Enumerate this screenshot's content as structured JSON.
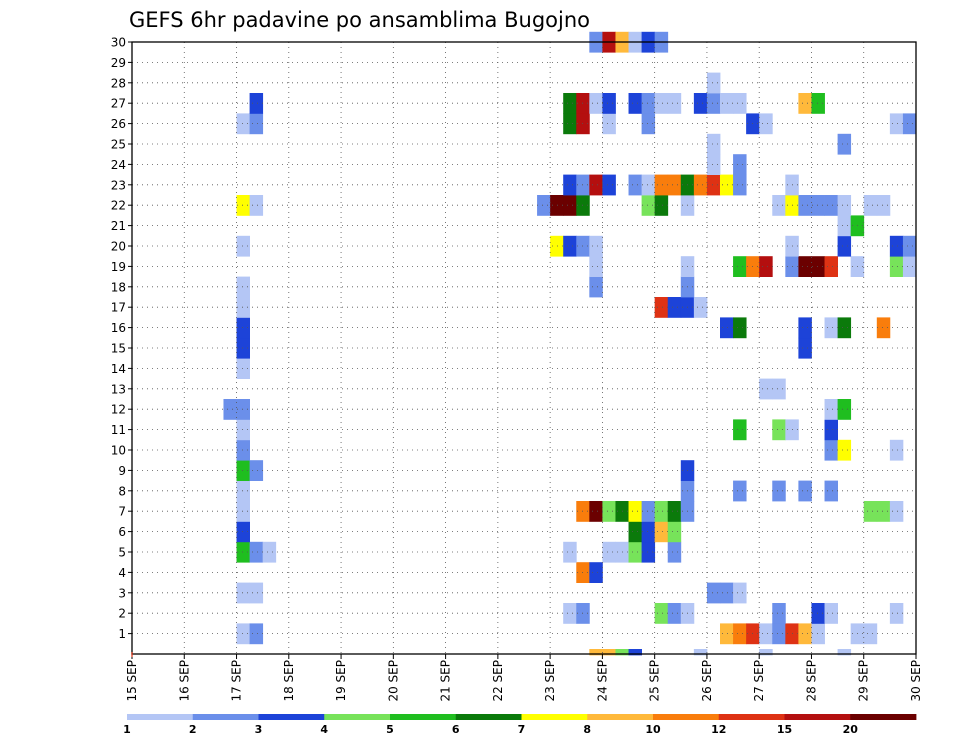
{
  "chart_data": {
    "type": "heatmap",
    "title": "GEFS 6hr padavine po ansamblima Bugojno",
    "xlabel": "",
    "ylabel": "",
    "x_tick_labels": [
      "15 SEP",
      "16 SEP",
      "17 SEP",
      "18 SEP",
      "19 SEP",
      "20 SEP",
      "21 SEP",
      "22 SEP",
      "23 SEP",
      "24 SEP",
      "25 SEP",
      "26 SEP",
      "27 SEP",
      "28 SEP",
      "29 SEP",
      "30 SEP"
    ],
    "x_range_days": [
      0,
      15
    ],
    "y_tick_labels": [
      "1",
      "2",
      "3",
      "4",
      "5",
      "6",
      "7",
      "8",
      "9",
      "10",
      "11",
      "12",
      "13",
      "14",
      "15",
      "16",
      "17",
      "18",
      "19",
      "20",
      "21",
      "22",
      "23",
      "24",
      "25",
      "26",
      "27",
      "28",
      "29",
      "30"
    ],
    "y_range": [
      0,
      30
    ],
    "grid": true,
    "legend_position": "bottom",
    "legend": {
      "colors": [
        "#b4c6f5",
        "#6b8fea",
        "#1d43d8",
        "#77e35a",
        "#1fbe1f",
        "#0b7a0b",
        "#ffff00",
        "#ffb93b",
        "#f97d0c",
        "#de3214",
        "#b40f0f",
        "#6b0000"
      ],
      "boundary_labels": [
        "1",
        "2",
        "3",
        "4",
        "5",
        "6",
        "7",
        "8",
        "10",
        "12",
        "15",
        "20"
      ]
    },
    "cells": [
      {
        "m": 1,
        "t": 8,
        "c": 1
      },
      {
        "m": 1,
        "t": 9,
        "c": 2
      },
      {
        "m": 1,
        "t": 45,
        "c": 8
      },
      {
        "m": 1,
        "t": 46,
        "c": 9
      },
      {
        "m": 1,
        "t": 47,
        "c": 10
      },
      {
        "m": 1,
        "t": 48,
        "c": 1
      },
      {
        "m": 1,
        "t": 49,
        "c": 2
      },
      {
        "m": 1,
        "t": 50,
        "c": 10
      },
      {
        "m": 1,
        "t": 51,
        "c": 8
      },
      {
        "m": 1,
        "t": 52,
        "c": 1
      },
      {
        "m": 1,
        "t": 55,
        "c": 1
      },
      {
        "m": 1,
        "t": 56,
        "c": 1
      },
      {
        "m": 2,
        "t": 33,
        "c": 1
      },
      {
        "m": 2,
        "t": 34,
        "c": 2
      },
      {
        "m": 2,
        "t": 40,
        "c": 4
      },
      {
        "m": 2,
        "t": 41,
        "c": 2
      },
      {
        "m": 2,
        "t": 42,
        "c": 1
      },
      {
        "m": 2,
        "t": 49,
        "c": 2
      },
      {
        "m": 2,
        "t": 52,
        "c": 3
      },
      {
        "m": 2,
        "t": 53,
        "c": 1
      },
      {
        "m": 2,
        "t": 58,
        "c": 1
      },
      {
        "m": 3,
        "t": 8,
        "c": 1
      },
      {
        "m": 3,
        "t": 9,
        "c": 1
      },
      {
        "m": 3,
        "t": 44,
        "c": 2
      },
      {
        "m": 3,
        "t": 45,
        "c": 2
      },
      {
        "m": 3,
        "t": 46,
        "c": 1
      },
      {
        "m": 4,
        "t": 34,
        "c": 9
      },
      {
        "m": 4,
        "t": 35,
        "c": 3
      },
      {
        "m": 5,
        "t": 8,
        "c": 5
      },
      {
        "m": 5,
        "t": 9,
        "c": 2
      },
      {
        "m": 5,
        "t": 10,
        "c": 1
      },
      {
        "m": 5,
        "t": 33,
        "c": 1
      },
      {
        "m": 5,
        "t": 36,
        "c": 1
      },
      {
        "m": 5,
        "t": 37,
        "c": 1
      },
      {
        "m": 5,
        "t": 38,
        "c": 4
      },
      {
        "m": 5,
        "t": 39,
        "c": 3
      },
      {
        "m": 5,
        "t": 41,
        "c": 2
      },
      {
        "m": 6,
        "t": 8,
        "c": 3
      },
      {
        "m": 6,
        "t": 38,
        "c": 6
      },
      {
        "m": 6,
        "t": 39,
        "c": 3
      },
      {
        "m": 6,
        "t": 40,
        "c": 8
      },
      {
        "m": 6,
        "t": 41,
        "c": 4
      },
      {
        "m": 7,
        "t": 8,
        "c": 1
      },
      {
        "m": 7,
        "t": 34,
        "c": 9
      },
      {
        "m": 7,
        "t": 35,
        "c": 12
      },
      {
        "m": 7,
        "t": 36,
        "c": 4
      },
      {
        "m": 7,
        "t": 37,
        "c": 6
      },
      {
        "m": 7,
        "t": 38,
        "c": 7
      },
      {
        "m": 7,
        "t": 39,
        "c": 2
      },
      {
        "m": 7,
        "t": 40,
        "c": 4
      },
      {
        "m": 7,
        "t": 41,
        "c": 6
      },
      {
        "m": 7,
        "t": 42,
        "c": 2
      },
      {
        "m": 7,
        "t": 56,
        "c": 4
      },
      {
        "m": 7,
        "t": 57,
        "c": 4
      },
      {
        "m": 7,
        "t": 58,
        "c": 1
      },
      {
        "m": 8,
        "t": 8,
        "c": 1
      },
      {
        "m": 8,
        "t": 42,
        "c": 2
      },
      {
        "m": 8,
        "t": 46,
        "c": 2
      },
      {
        "m": 8,
        "t": 49,
        "c": 2
      },
      {
        "m": 8,
        "t": 51,
        "c": 2
      },
      {
        "m": 8,
        "t": 53,
        "c": 2
      },
      {
        "m": 9,
        "t": 8,
        "c": 5
      },
      {
        "m": 9,
        "t": 9,
        "c": 2
      },
      {
        "m": 9,
        "t": 42,
        "c": 3
      },
      {
        "m": 10,
        "t": 8,
        "c": 2
      },
      {
        "m": 10,
        "t": 53,
        "c": 2
      },
      {
        "m": 10,
        "t": 54,
        "c": 7
      },
      {
        "m": 10,
        "t": 58,
        "c": 1
      },
      {
        "m": 11,
        "t": 8,
        "c": 1
      },
      {
        "m": 11,
        "t": 46,
        "c": 5
      },
      {
        "m": 11,
        "t": 49,
        "c": 4
      },
      {
        "m": 11,
        "t": 50,
        "c": 1
      },
      {
        "m": 11,
        "t": 53,
        "c": 3
      },
      {
        "m": 12,
        "t": 7,
        "c": 2
      },
      {
        "m": 12,
        "t": 8,
        "c": 2
      },
      {
        "m": 12,
        "t": 53,
        "c": 1
      },
      {
        "m": 12,
        "t": 54,
        "c": 5
      },
      {
        "m": 13,
        "t": 48,
        "c": 1
      },
      {
        "m": 13,
        "t": 49,
        "c": 1
      },
      {
        "m": 14,
        "t": 8,
        "c": 1
      },
      {
        "m": 15,
        "t": 8,
        "c": 3
      },
      {
        "m": 15,
        "t": 51,
        "c": 3
      },
      {
        "m": 16,
        "t": 8,
        "c": 3
      },
      {
        "m": 16,
        "t": 45,
        "c": 3
      },
      {
        "m": 16,
        "t": 46,
        "c": 6
      },
      {
        "m": 16,
        "t": 51,
        "c": 3
      },
      {
        "m": 16,
        "t": 53,
        "c": 1
      },
      {
        "m": 16,
        "t": 54,
        "c": 6
      },
      {
        "m": 16,
        "t": 57,
        "c": 9
      },
      {
        "m": 17,
        "t": 8,
        "c": 1
      },
      {
        "m": 17,
        "t": 40,
        "c": 10
      },
      {
        "m": 17,
        "t": 41,
        "c": 3
      },
      {
        "m": 17,
        "t": 42,
        "c": 3
      },
      {
        "m": 17,
        "t": 43,
        "c": 1
      },
      {
        "m": 18,
        "t": 8,
        "c": 1
      },
      {
        "m": 18,
        "t": 35,
        "c": 2
      },
      {
        "m": 18,
        "t": 42,
        "c": 2
      },
      {
        "m": 19,
        "t": 35,
        "c": 1
      },
      {
        "m": 19,
        "t": 42,
        "c": 1
      },
      {
        "m": 19,
        "t": 46,
        "c": 5
      },
      {
        "m": 19,
        "t": 47,
        "c": 9
      },
      {
        "m": 19,
        "t": 48,
        "c": 11
      },
      {
        "m": 19,
        "t": 50,
        "c": 2
      },
      {
        "m": 19,
        "t": 51,
        "c": 12
      },
      {
        "m": 19,
        "t": 52,
        "c": 12
      },
      {
        "m": 19,
        "t": 53,
        "c": 10
      },
      {
        "m": 19,
        "t": 55,
        "c": 1
      },
      {
        "m": 19,
        "t": 58,
        "c": 4
      },
      {
        "m": 19,
        "t": 59,
        "c": 1
      },
      {
        "m": 20,
        "t": 8,
        "c": 1
      },
      {
        "m": 20,
        "t": 32,
        "c": 7
      },
      {
        "m": 20,
        "t": 33,
        "c": 3
      },
      {
        "m": 20,
        "t": 34,
        "c": 2
      },
      {
        "m": 20,
        "t": 35,
        "c": 1
      },
      {
        "m": 20,
        "t": 50,
        "c": 1
      },
      {
        "m": 20,
        "t": 54,
        "c": 3
      },
      {
        "m": 20,
        "t": 58,
        "c": 3
      },
      {
        "m": 20,
        "t": 59,
        "c": 2
      },
      {
        "m": 21,
        "t": 54,
        "c": 1
      },
      {
        "m": 21,
        "t": 55,
        "c": 5
      },
      {
        "m": 22,
        "t": 8,
        "c": 7
      },
      {
        "m": 22,
        "t": 9,
        "c": 1
      },
      {
        "m": 22,
        "t": 31,
        "c": 2
      },
      {
        "m": 22,
        "t": 32,
        "c": 12
      },
      {
        "m": 22,
        "t": 33,
        "c": 12
      },
      {
        "m": 22,
        "t": 34,
        "c": 6
      },
      {
        "m": 22,
        "t": 39,
        "c": 4
      },
      {
        "m": 22,
        "t": 40,
        "c": 6
      },
      {
        "m": 22,
        "t": 42,
        "c": 1
      },
      {
        "m": 22,
        "t": 49,
        "c": 1
      },
      {
        "m": 22,
        "t": 50,
        "c": 7
      },
      {
        "m": 22,
        "t": 51,
        "c": 2
      },
      {
        "m": 22,
        "t": 52,
        "c": 2
      },
      {
        "m": 22,
        "t": 53,
        "c": 2
      },
      {
        "m": 22,
        "t": 54,
        "c": 1
      },
      {
        "m": 22,
        "t": 56,
        "c": 1
      },
      {
        "m": 22,
        "t": 57,
        "c": 1
      },
      {
        "m": 23,
        "t": 33,
        "c": 3
      },
      {
        "m": 23,
        "t": 34,
        "c": 2
      },
      {
        "m": 23,
        "t": 35,
        "c": 11
      },
      {
        "m": 23,
        "t": 36,
        "c": 3
      },
      {
        "m": 23,
        "t": 38,
        "c": 2
      },
      {
        "m": 23,
        "t": 39,
        "c": 1
      },
      {
        "m": 23,
        "t": 40,
        "c": 9
      },
      {
        "m": 23,
        "t": 41,
        "c": 9
      },
      {
        "m": 23,
        "t": 42,
        "c": 6
      },
      {
        "m": 23,
        "t": 43,
        "c": 9
      },
      {
        "m": 23,
        "t": 44,
        "c": 10
      },
      {
        "m": 23,
        "t": 45,
        "c": 7
      },
      {
        "m": 23,
        "t": 46,
        "c": 2
      },
      {
        "m": 23,
        "t": 50,
        "c": 1
      },
      {
        "m": 24,
        "t": 44,
        "c": 1
      },
      {
        "m": 24,
        "t": 46,
        "c": 2
      },
      {
        "m": 25,
        "t": 44,
        "c": 1
      },
      {
        "m": 25,
        "t": 54,
        "c": 2
      },
      {
        "m": 26,
        "t": 8,
        "c": 1
      },
      {
        "m": 26,
        "t": 9,
        "c": 2
      },
      {
        "m": 26,
        "t": 33,
        "c": 6
      },
      {
        "m": 26,
        "t": 34,
        "c": 11
      },
      {
        "m": 26,
        "t": 36,
        "c": 1
      },
      {
        "m": 26,
        "t": 39,
        "c": 2
      },
      {
        "m": 26,
        "t": 47,
        "c": 3
      },
      {
        "m": 26,
        "t": 48,
        "c": 1
      },
      {
        "m": 26,
        "t": 58,
        "c": 1
      },
      {
        "m": 26,
        "t": 59,
        "c": 2
      },
      {
        "m": 27,
        "t": 9,
        "c": 3
      },
      {
        "m": 27,
        "t": 33,
        "c": 6
      },
      {
        "m": 27,
        "t": 34,
        "c": 11
      },
      {
        "m": 27,
        "t": 35,
        "c": 1
      },
      {
        "m": 27,
        "t": 36,
        "c": 3
      },
      {
        "m": 27,
        "t": 38,
        "c": 3
      },
      {
        "m": 27,
        "t": 39,
        "c": 2
      },
      {
        "m": 27,
        "t": 40,
        "c": 1
      },
      {
        "m": 27,
        "t": 41,
        "c": 1
      },
      {
        "m": 27,
        "t": 43,
        "c": 3
      },
      {
        "m": 27,
        "t": 44,
        "c": 2
      },
      {
        "m": 27,
        "t": 45,
        "c": 1
      },
      {
        "m": 27,
        "t": 46,
        "c": 1
      },
      {
        "m": 27,
        "t": 51,
        "c": 8
      },
      {
        "m": 27,
        "t": 52,
        "c": 5
      },
      {
        "m": 28,
        "t": 44,
        "c": 1
      },
      {
        "m": 30,
        "t": 35,
        "c": 2
      },
      {
        "m": 30,
        "t": 36,
        "c": 11
      },
      {
        "m": 30,
        "t": 37,
        "c": 8
      },
      {
        "m": 30,
        "t": 38,
        "c": 1
      },
      {
        "m": 30,
        "t": 39,
        "c": 3
      },
      {
        "m": 30,
        "t": 40,
        "c": 2
      },
      {
        "m": 0,
        "t": 35,
        "c": 8
      },
      {
        "m": 0,
        "t": 36,
        "c": 8
      },
      {
        "m": 0,
        "t": 37,
        "c": 4
      },
      {
        "m": 0,
        "t": 38,
        "c": 3
      },
      {
        "m": 0,
        "t": 43,
        "c": 1
      },
      {
        "m": 0,
        "t": 48,
        "c": 1
      },
      {
        "m": 0,
        "t": 54,
        "c": 1
      }
    ]
  }
}
